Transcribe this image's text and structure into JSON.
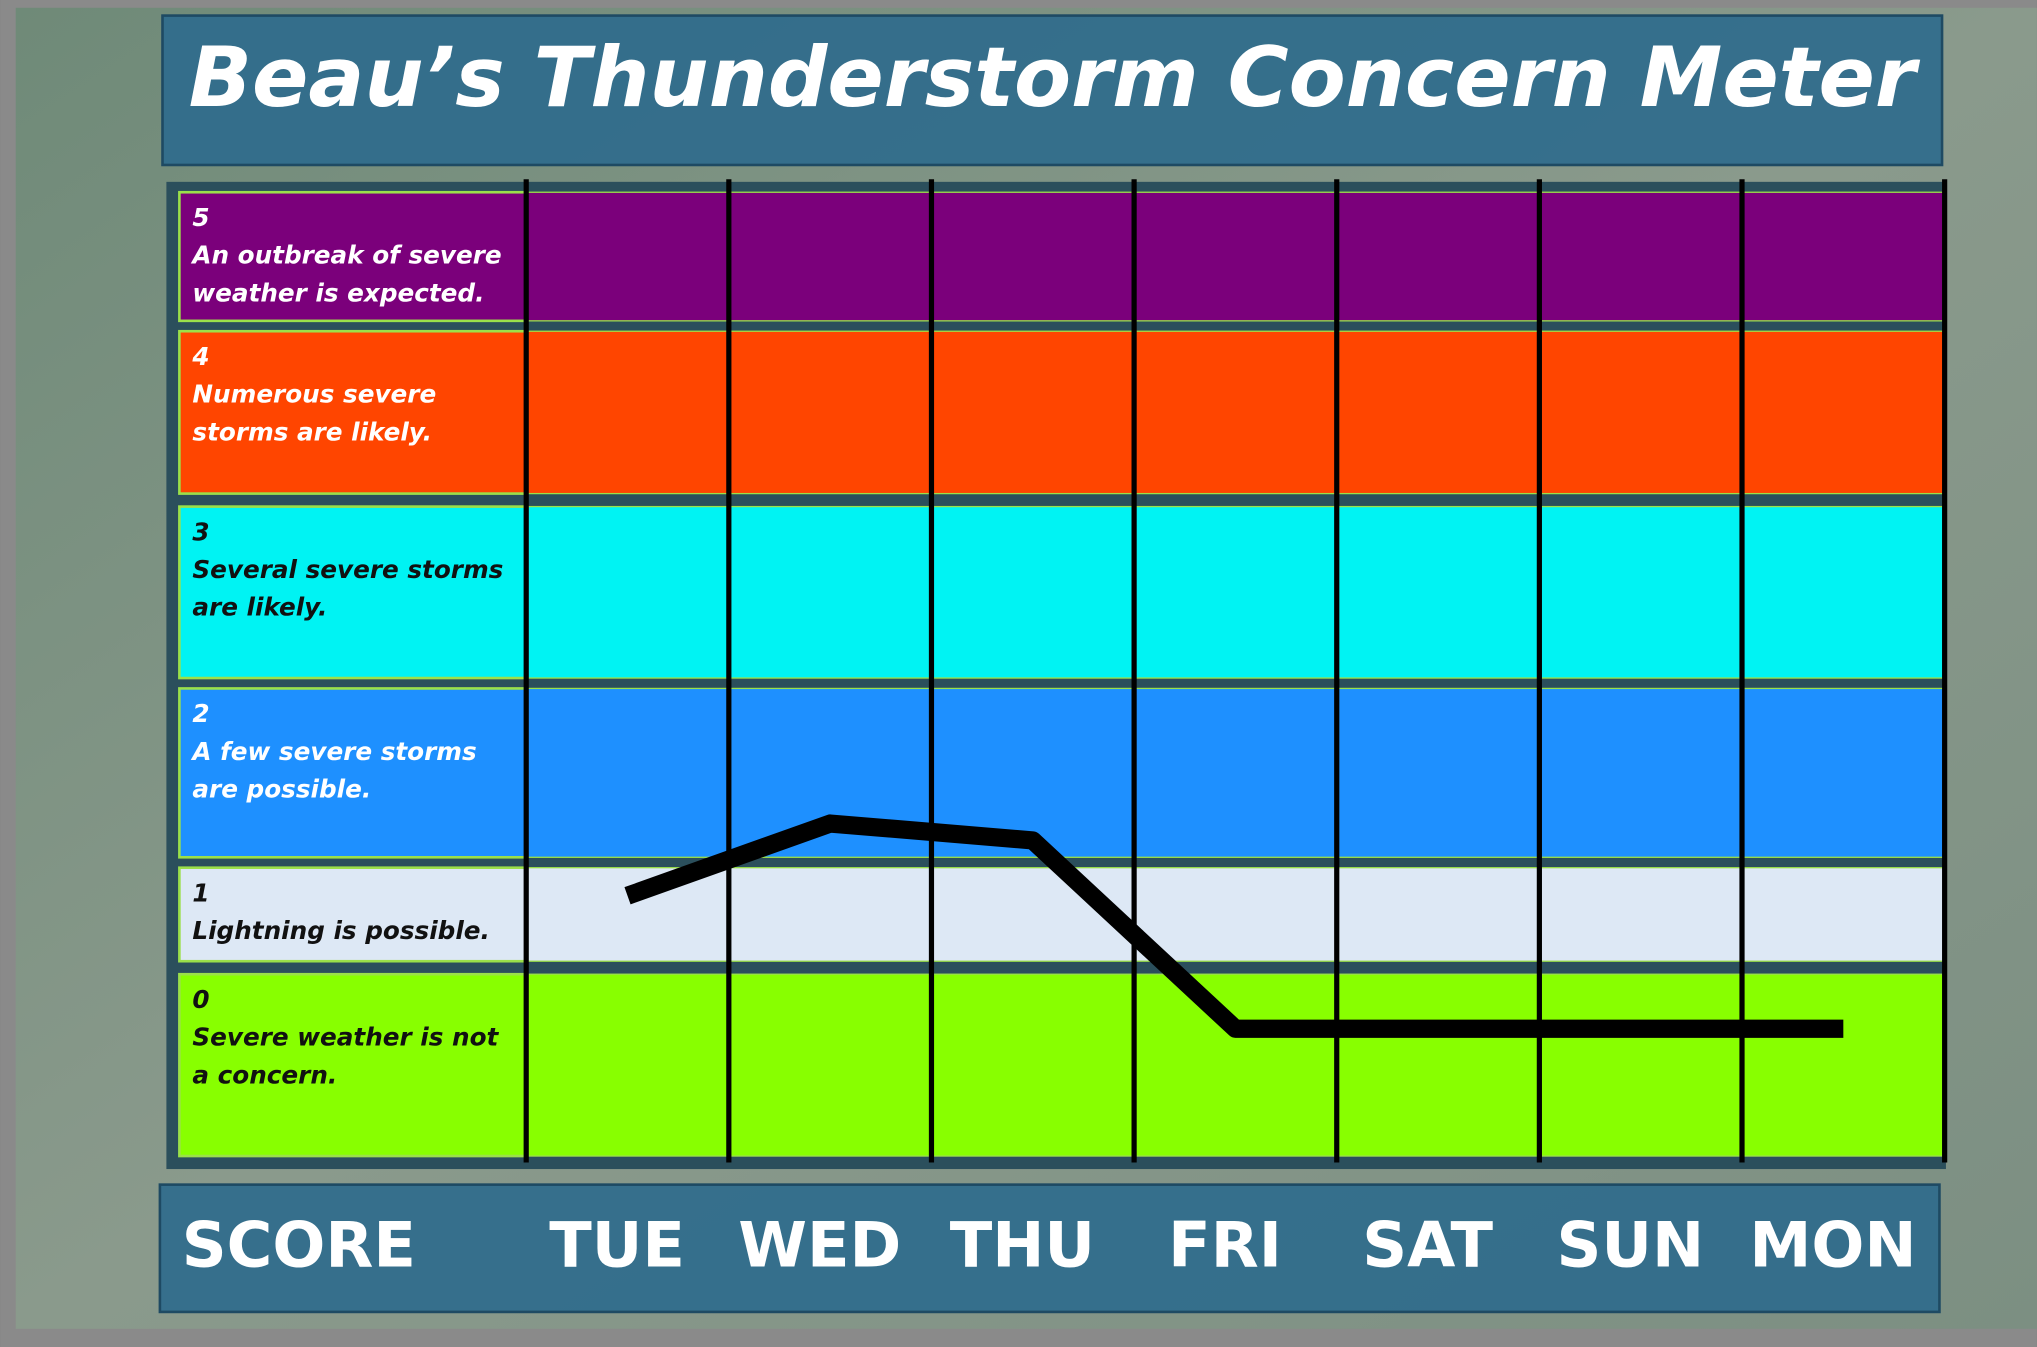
{
  "chart_data": {
    "type": "line",
    "title": "Beau’s Thunderstorm Concern Meter",
    "x_label": "SCORE",
    "categories": [
      "TUE",
      "WED",
      "THU",
      "FRI",
      "SAT",
      "SUN",
      "MON"
    ],
    "levels": [
      {
        "score": 5,
        "description": "An outbreak of severe weather is expected.",
        "color": "#7b007b"
      },
      {
        "score": 4,
        "description": "Numerous severe storms are likely.",
        "color": "#ff4500"
      },
      {
        "score": 3,
        "description": "Several severe storms are likely.",
        "color": "#00f3f3"
      },
      {
        "score": 2,
        "description": "A few severe storms are possible.",
        "color": "#1e90ff"
      },
      {
        "score": 1,
        "description": "Lightning is possible.",
        "color": "#dde8f5"
      },
      {
        "score": 0,
        "description": "Severe weather is not a concern.",
        "color": "#88ff00"
      }
    ],
    "series": [
      {
        "color": "#000000",
        "values": [
          1.7,
          2.2,
          2.1,
          0.7,
          0.7,
          0.7,
          0.7
        ]
      }
    ]
  }
}
